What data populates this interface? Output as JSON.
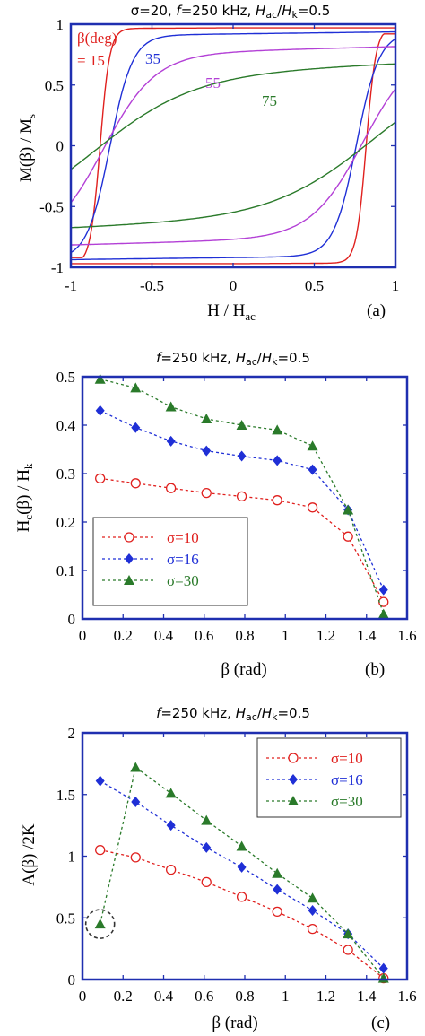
{
  "colors": {
    "red": "#e0201e",
    "blue": "#1f2fd6",
    "violet": "#b340d6",
    "green": "#2a7a2a",
    "frame": "#1f2fb0",
    "circle": "#333333"
  },
  "chart_data": [
    {
      "type": "line",
      "panel_label": "(a)",
      "title": "σ=20, f=250 kHz, Hac/Hk=0.5",
      "title_parts": {
        "a": "σ=20, ",
        "f": "f",
        "b": "=250 kHz, ",
        "H1": "H",
        "s1": "ac",
        "slash": "/",
        "H2": "H",
        "s2": "k",
        "c": "=0.5"
      },
      "xlabel_parts": {
        "a": "H / H",
        "sub": "ac"
      },
      "ylabel_parts": {
        "a": "M(β) / M",
        "sub": "s"
      },
      "xlim": [
        -1,
        1
      ],
      "ylim": [
        -1,
        1
      ],
      "xticks": [
        "-1",
        "-0.5",
        "0",
        "0.5",
        "1"
      ],
      "yticks": [
        "-1",
        "-0.5",
        "0",
        "0.5",
        "1"
      ],
      "legend_title_1": "β(deg)",
      "legend_title_2": "= 15",
      "series": [
        {
          "name": "15",
          "color": "red",
          "label": "= 15",
          "hc": 0.82,
          "ms": 0.97,
          "sharp": 0.045,
          "upper": [
            [
              -1,
              0.93
            ],
            [
              -0.99,
              0.64
            ],
            [
              -0.97,
              0.8
            ],
            [
              -0.9,
              0.88
            ],
            [
              -0.5,
              0.91
            ],
            [
              0,
              0.93
            ],
            [
              0.5,
              0.95
            ],
            [
              0.95,
              0.97
            ],
            [
              1,
              0.97
            ]
          ]
        },
        {
          "name": "35",
          "color": "blue",
          "label": "35"
        },
        {
          "name": "55",
          "color": "violet",
          "label": "55"
        },
        {
          "name": "75",
          "color": "green",
          "label": "75"
        }
      ]
    },
    {
      "type": "line",
      "panel_label": "(b)",
      "title": "f=250 kHz, Hac/Hk=0.5",
      "title_parts": {
        "f": "f",
        "b": "=250 kHz, ",
        "H1": "H",
        "s1": "ac",
        "slash": "/",
        "H2": "H",
        "s2": "k",
        "c": "=0.5"
      },
      "xlabel": "β (rad)",
      "ylabel_parts": {
        "a": "H",
        "s1": "c",
        "b": "(β) / H",
        "s2": "k"
      },
      "xlim": [
        0,
        1.6
      ],
      "ylim": [
        0,
        0.5
      ],
      "xticks": [
        "0",
        "0.2",
        "0.4",
        "0.6",
        "0.8",
        "1",
        "1.2",
        "1.4",
        "1.6"
      ],
      "yticks": [
        "0",
        "0.1",
        "0.2",
        "0.3",
        "0.4",
        "0.5"
      ],
      "x": [
        0.087,
        0.262,
        0.436,
        0.611,
        0.785,
        0.96,
        1.134,
        1.309,
        1.484
      ],
      "series": [
        {
          "name": "σ=10",
          "color": "red",
          "marker": "open-circle",
          "values": [
            0.29,
            0.28,
            0.27,
            0.26,
            0.253,
            0.245,
            0.23,
            0.17,
            0.035
          ]
        },
        {
          "name": "σ=16",
          "color": "blue",
          "marker": "diamond",
          "values": [
            0.43,
            0.395,
            0.367,
            0.347,
            0.336,
            0.327,
            0.308,
            0.225,
            0.06
          ]
        },
        {
          "name": "σ=30",
          "color": "green",
          "marker": "triangle",
          "values": [
            0.495,
            0.477,
            0.438,
            0.413,
            0.4,
            0.39,
            0.357,
            0.225,
            0.01
          ]
        }
      ],
      "legend": {
        "placement": "lower-left",
        "items": [
          "σ=10",
          "σ=16",
          "σ=30"
        ]
      }
    },
    {
      "type": "line",
      "panel_label": "(c)",
      "title": "f=250 kHz, Hac/Hk=0.5",
      "title_parts": {
        "f": "f",
        "b": "=250 kHz, ",
        "H1": "H",
        "s1": "ac",
        "slash": "/",
        "H2": "H",
        "s2": "k",
        "c": "=0.5"
      },
      "xlabel": "β (rad)",
      "ylabel": "A(β) /2K",
      "xlim": [
        0,
        1.6
      ],
      "ylim": [
        0,
        2
      ],
      "xticks": [
        "0",
        "0.2",
        "0.4",
        "0.6",
        "0.8",
        "1",
        "1.2",
        "1.4",
        "1.6"
      ],
      "yticks": [
        "0",
        "0.5",
        "1",
        "1.5",
        "2"
      ],
      "x": [
        0.087,
        0.262,
        0.436,
        0.611,
        0.785,
        0.96,
        1.134,
        1.309,
        1.484
      ],
      "series": [
        {
          "name": "σ=10",
          "color": "red",
          "marker": "open-circle",
          "values": [
            1.05,
            0.99,
            0.89,
            0.79,
            0.67,
            0.55,
            0.41,
            0.24,
            0.01
          ]
        },
        {
          "name": "σ=16",
          "color": "blue",
          "marker": "diamond",
          "values": [
            1.61,
            1.44,
            1.25,
            1.07,
            0.91,
            0.73,
            0.56,
            0.37,
            0.09
          ]
        },
        {
          "name": "σ=30",
          "color": "green",
          "marker": "triangle",
          "values": [
            0.45,
            1.72,
            1.51,
            1.29,
            1.08,
            0.86,
            0.66,
            0.37,
            0.01
          ]
        }
      ],
      "legend": {
        "placement": "top-right",
        "items": [
          "σ=10",
          "σ=16",
          "σ=30"
        ]
      },
      "annotation": "dashed circle around first σ=30 point"
    }
  ]
}
